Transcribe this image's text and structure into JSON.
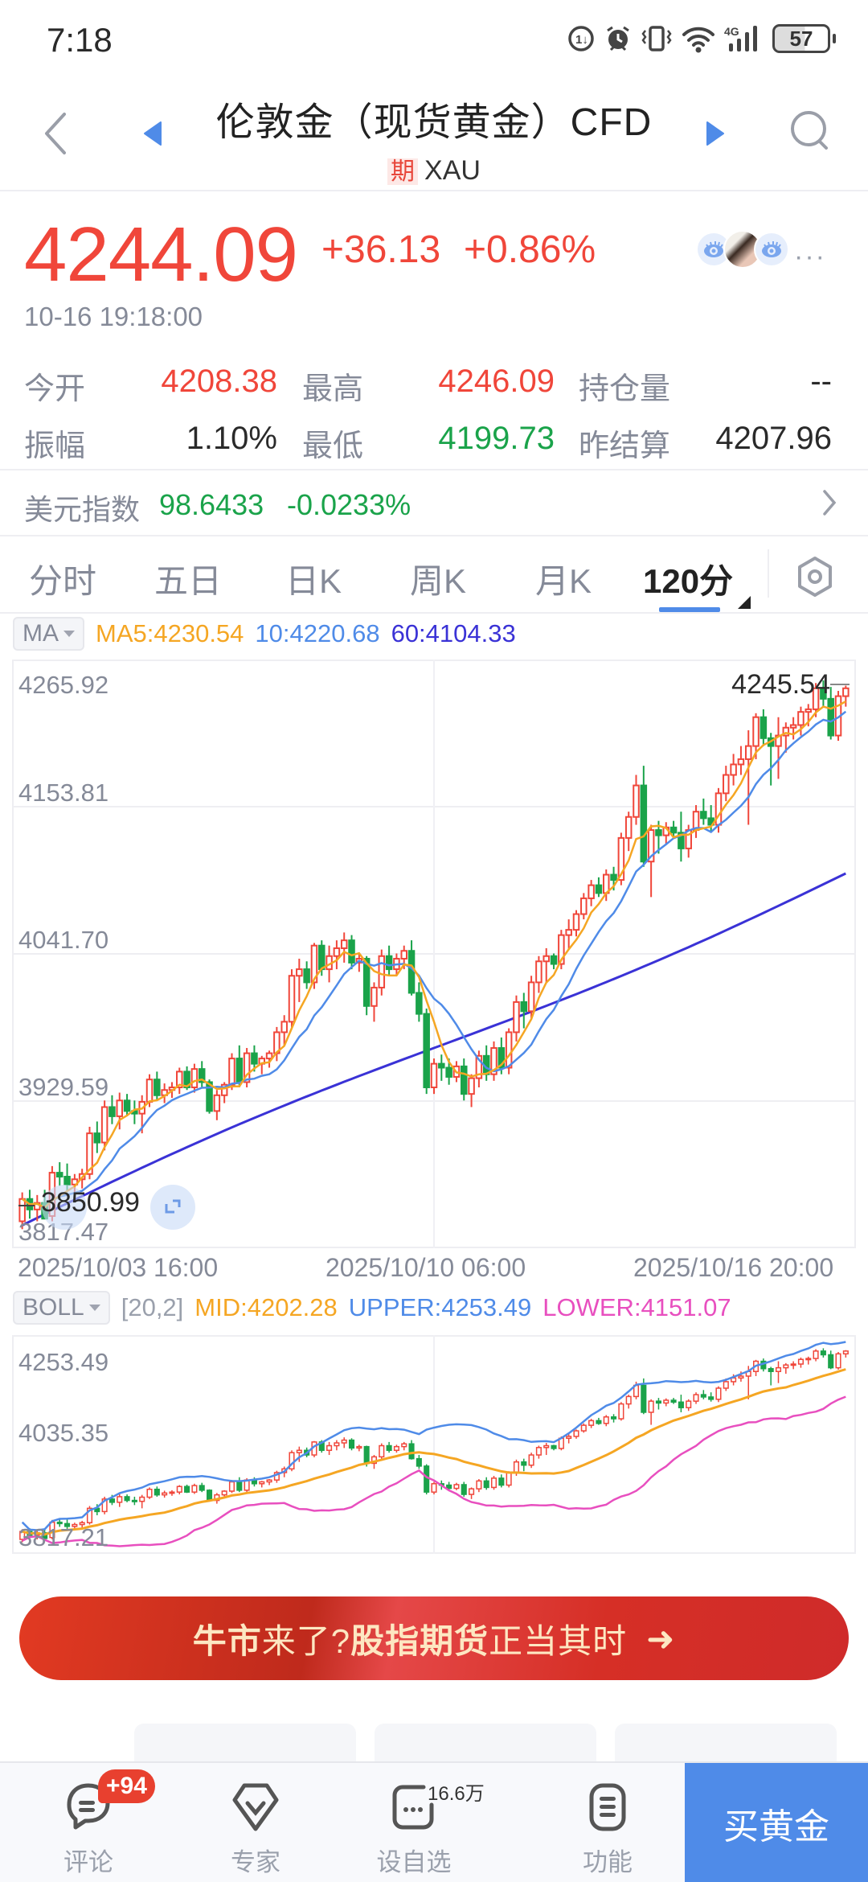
{
  "status_bar": {
    "time": "7:18",
    "icons": [
      "data-saver-icon",
      "alarm-icon",
      "vibrate-icon",
      "wifi-icon",
      "4g-signal-icon"
    ],
    "network": "4G",
    "battery": "57"
  },
  "header": {
    "title": "伦敦金（现货黄金）CFD",
    "tag": "期",
    "symbol": "XAU",
    "icons": {
      "back": "back-chevron-icon",
      "prev": "prev-triangle-icon",
      "next": "next-triangle-icon",
      "search": "search-icon"
    }
  },
  "quote": {
    "price": "4244.09",
    "change": "+36.13",
    "change_pct": "+0.86%",
    "timestamp": "10-16 19:18:00",
    "more": "···"
  },
  "stats": {
    "rows": [
      [
        {
          "label": "今开",
          "value": "4208.38",
          "color": "red"
        },
        {
          "label": "最高",
          "value": "4246.09",
          "color": "red"
        },
        {
          "label": "持仓量",
          "value": "--",
          "color": "dark"
        }
      ],
      [
        {
          "label": "振幅",
          "value": "1.10%",
          "color": "dark"
        },
        {
          "label": "最低",
          "value": "4199.73",
          "color": "green"
        },
        {
          "label": "昨结算",
          "value": "4207.96",
          "color": "dark"
        }
      ]
    ]
  },
  "dollar_index": {
    "label": "美元指数",
    "value": "98.6433",
    "change_pct": "-0.0233%"
  },
  "tabs": {
    "items": [
      "分时",
      "五日",
      "日K",
      "周K",
      "月K",
      "120分"
    ],
    "active": "120分"
  },
  "ma_legend": {
    "selector": "MA",
    "ma5": "MA5:4230.54",
    "ma10": "10:4220.68",
    "ma60": "60:4104.33",
    "colors": {
      "ma5": "#f5a623",
      "ma10": "#4f8be8",
      "ma60": "#3a32d6"
    }
  },
  "main_chart": {
    "y_labels": [
      "4265.92",
      "4153.81",
      "4041.70",
      "3929.59",
      "3817.47"
    ],
    "max_marker": "4245.54",
    "min_marker": "3850.99",
    "x_labels": [
      "2025/10/03 16:00",
      "2025/10/10 06:00",
      "2025/10/16 20:00"
    ]
  },
  "boll_legend": {
    "selector": "BOLL",
    "params": "[20,2]",
    "mid": "MID:4202.28",
    "upper": "UPPER:4253.49",
    "lower": "LOWER:4151.07",
    "colors": {
      "mid": "#f5a623",
      "upper": "#4f8be8",
      "lower": "#e84fbf"
    }
  },
  "boll_chart": {
    "y_labels": [
      "4253.49",
      "4035.35",
      "3817.21"
    ]
  },
  "banner": {
    "part1": "牛市",
    "part2": "来了? ",
    "part3": "股指期货",
    "part4": "正当其时",
    "arrow": "➜"
  },
  "bottom_nav": {
    "items": [
      {
        "label": "评论",
        "icon": "comment-icon"
      },
      {
        "label": "专家",
        "icon": "expert-diamond-icon"
      },
      {
        "label": "设自选",
        "icon": "add-watchlist-icon"
      },
      {
        "label": "功能",
        "icon": "menu-icon"
      }
    ],
    "comment_badge": "+94",
    "watchlist_count": "16.6万",
    "buy_label": "买黄金"
  },
  "colors": {
    "up": "#f0463a",
    "down": "#1aa34a",
    "accent": "#4f8be8"
  },
  "chart_data": {
    "type": "candlestick",
    "title": "伦敦金（现货黄金）CFD 120分",
    "xlabel": "",
    "ylabel": "",
    "ylim": [
      3817.47,
      4265.92
    ],
    "x_ticks": [
      "2025/10/03 16:00",
      "2025/10/10 06:00",
      "2025/10/16 20:00"
    ],
    "candles": [
      [
        3838,
        3860,
        3832,
        3855
      ],
      [
        3855,
        3862,
        3840,
        3847
      ],
      [
        3847,
        3858,
        3838,
        3852
      ],
      [
        3852,
        3862,
        3845,
        3840
      ],
      [
        3842,
        3880,
        3838,
        3875
      ],
      [
        3875,
        3883,
        3865,
        3872
      ],
      [
        3872,
        3882,
        3860,
        3866
      ],
      [
        3866,
        3874,
        3858,
        3870
      ],
      [
        3870,
        3878,
        3863,
        3874
      ],
      [
        3874,
        3910,
        3870,
        3905
      ],
      [
        3905,
        3914,
        3890,
        3898
      ],
      [
        3898,
        3930,
        3892,
        3925
      ],
      [
        3925,
        3934,
        3912,
        3918
      ],
      [
        3918,
        3936,
        3908,
        3930
      ],
      [
        3930,
        3935,
        3918,
        3922
      ],
      [
        3922,
        3930,
        3912,
        3920
      ],
      [
        3920,
        3934,
        3905,
        3929
      ],
      [
        3929,
        3950,
        3925,
        3946
      ],
      [
        3946,
        3952,
        3930,
        3934
      ],
      [
        3934,
        3943,
        3928,
        3938
      ],
      [
        3938,
        3944,
        3932,
        3940
      ],
      [
        3940,
        3955,
        3935,
        3952
      ],
      [
        3952,
        3956,
        3938,
        3940
      ],
      [
        3940,
        3958,
        3936,
        3954
      ],
      [
        3954,
        3960,
        3940,
        3944
      ],
      [
        3944,
        3946,
        3920,
        3922
      ],
      [
        3922,
        3938,
        3915,
        3934
      ],
      [
        3934,
        3944,
        3928,
        3942
      ],
      [
        3942,
        3966,
        3938,
        3962
      ],
      [
        3962,
        3972,
        3940,
        3944
      ],
      [
        3944,
        3970,
        3940,
        3966
      ],
      [
        3966,
        3972,
        3952,
        3958
      ],
      [
        3958,
        3964,
        3950,
        3962
      ],
      [
        3962,
        3968,
        3955,
        3966
      ],
      [
        3966,
        3986,
        3960,
        3982
      ],
      [
        3982,
        3995,
        3972,
        3990
      ],
      [
        3990,
        4030,
        3985,
        4025
      ],
      [
        4025,
        4038,
        4005,
        4030
      ],
      [
        4030,
        4036,
        4015,
        4020
      ],
      [
        4020,
        4050,
        4015,
        4048
      ],
      [
        4048,
        4052,
        4025,
        4030
      ],
      [
        4030,
        4048,
        4020,
        4040
      ],
      [
        4040,
        4052,
        4030,
        4046
      ],
      [
        4046,
        4058,
        4035,
        4052
      ],
      [
        4052,
        4056,
        4030,
        4035
      ],
      [
        4035,
        4042,
        4028,
        4038
      ],
      [
        4038,
        4040,
        3995,
        4002
      ],
      [
        4002,
        4020,
        3990,
        4016
      ],
      [
        4016,
        4045,
        4010,
        4040
      ],
      [
        4040,
        4048,
        4025,
        4030
      ],
      [
        4030,
        4042,
        4025,
        4038
      ],
      [
        4038,
        4048,
        4030,
        4044
      ],
      [
        4044,
        4052,
        4010,
        4012
      ],
      [
        4012,
        4020,
        3990,
        3996
      ],
      [
        3996,
        4000,
        3935,
        3940
      ],
      [
        3940,
        3962,
        3935,
        3958
      ],
      [
        3958,
        3965,
        3945,
        3955
      ],
      [
        3955,
        3962,
        3942,
        3948
      ],
      [
        3948,
        3960,
        3944,
        3956
      ],
      [
        3956,
        3962,
        3930,
        3935
      ],
      [
        3935,
        3950,
        3925,
        3947
      ],
      [
        3947,
        3968,
        3940,
        3964
      ],
      [
        3964,
        3972,
        3945,
        3950
      ],
      [
        3950,
        3975,
        3945,
        3970
      ],
      [
        3970,
        3978,
        3950,
        3955
      ],
      [
        3955,
        3985,
        3950,
        3982
      ],
      [
        3982,
        4010,
        3975,
        4005
      ],
      [
        4005,
        4012,
        3985,
        3998
      ],
      [
        3998,
        4025,
        3992,
        4020
      ],
      [
        4020,
        4040,
        4012,
        4036
      ],
      [
        4036,
        4046,
        4020,
        4040
      ],
      [
        4040,
        4042,
        4030,
        4034
      ],
      [
        4034,
        4060,
        4030,
        4056
      ],
      [
        4056,
        4068,
        4045,
        4060
      ],
      [
        4060,
        4075,
        4055,
        4072
      ],
      [
        4072,
        4088,
        4068,
        4084
      ],
      [
        4084,
        4098,
        4078,
        4094
      ],
      [
        4094,
        4100,
        4085,
        4088
      ],
      [
        4088,
        4106,
        4082,
        4102
      ],
      [
        4102,
        4108,
        4090,
        4098
      ],
      [
        4098,
        4134,
        4094,
        4130
      ],
      [
        4130,
        4150,
        4120,
        4146
      ],
      [
        4146,
        4178,
        4140,
        4170
      ],
      [
        4170,
        4185,
        4108,
        4112
      ],
      [
        4112,
        4140,
        4085,
        4136
      ],
      [
        4136,
        4143,
        4118,
        4132
      ],
      [
        4132,
        4142,
        4125,
        4138
      ],
      [
        4138,
        4143,
        4130,
        4134
      ],
      [
        4134,
        4150,
        4112,
        4122
      ],
      [
        4122,
        4140,
        4115,
        4136
      ],
      [
        4136,
        4155,
        4130,
        4150
      ],
      [
        4150,
        4160,
        4140,
        4145
      ],
      [
        4145,
        4155,
        4135,
        4140
      ],
      [
        4140,
        4168,
        4134,
        4164
      ],
      [
        4164,
        4185,
        4158,
        4178
      ],
      [
        4178,
        4194,
        4170,
        4186
      ],
      [
        4186,
        4200,
        4178,
        4190
      ],
      [
        4190,
        4212,
        4140,
        4200
      ],
      [
        4200,
        4225,
        4190,
        4222
      ],
      [
        4222,
        4228,
        4200,
        4206
      ],
      [
        4206,
        4210,
        4170,
        4200
      ],
      [
        4200,
        4222,
        4175,
        4208
      ],
      [
        4208,
        4218,
        4195,
        4214
      ],
      [
        4214,
        4222,
        4205,
        4216
      ],
      [
        4216,
        4230,
        4208,
        4226
      ],
      [
        4226,
        4232,
        4215,
        4228
      ],
      [
        4228,
        4248,
        4222,
        4244
      ],
      [
        4244,
        4250,
        4230,
        4236
      ],
      [
        4236,
        4245,
        4205,
        4208
      ],
      [
        4208,
        4242,
        4204,
        4238
      ],
      [
        4238,
        4246,
        4230,
        4244
      ]
    ]
  }
}
